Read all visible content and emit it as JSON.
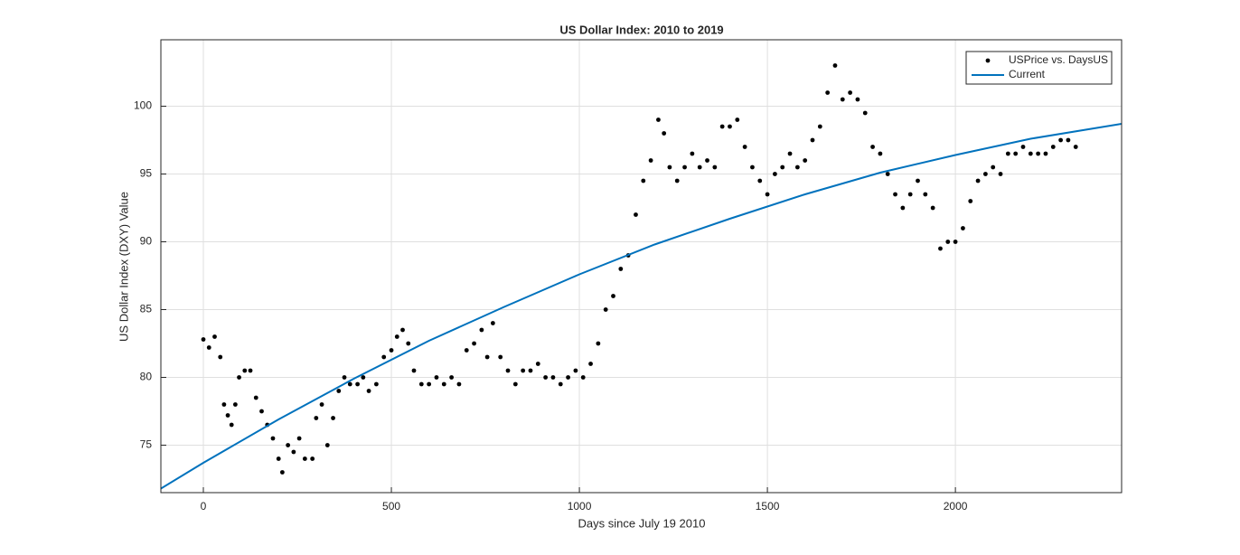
{
  "chart_data": {
    "type": "scatter",
    "title": "US Dollar Index: 2010 to 2019",
    "xlabel": "Days since July 19 2010",
    "ylabel": "US Dollar Index (DXY) Value",
    "xlim": [
      -113,
      2442
    ],
    "ylim": [
      71.5,
      104.9
    ],
    "xticks": [
      0,
      500,
      1000,
      1500,
      2000
    ],
    "yticks": [
      75,
      80,
      85,
      90,
      95,
      100
    ],
    "grid": true,
    "legend": "upper right",
    "series": [
      {
        "name": "USPrice vs. DaysUS",
        "type": "scatter",
        "color": "#000000",
        "x": [
          0,
          15,
          30,
          45,
          55,
          65,
          75,
          85,
          95,
          110,
          125,
          140,
          155,
          170,
          185,
          200,
          210,
          225,
          240,
          255,
          270,
          290,
          300,
          315,
          330,
          345,
          360,
          375,
          390,
          410,
          425,
          440,
          460,
          480,
          500,
          515,
          530,
          545,
          560,
          580,
          600,
          620,
          640,
          660,
          680,
          700,
          720,
          740,
          755,
          770,
          790,
          810,
          830,
          850,
          870,
          890,
          910,
          930,
          950,
          970,
          990,
          1010,
          1030,
          1050,
          1070,
          1090,
          1110,
          1130,
          1150,
          1170,
          1190,
          1210,
          1225,
          1240,
          1260,
          1280,
          1300,
          1320,
          1340,
          1360,
          1380,
          1400,
          1420,
          1440,
          1460,
          1480,
          1500,
          1520,
          1540,
          1560,
          1580,
          1600,
          1620,
          1640,
          1660,
          1680,
          1700,
          1720,
          1740,
          1760,
          1780,
          1800,
          1820,
          1840,
          1860,
          1880,
          1900,
          1920,
          1940,
          1960,
          1980,
          2000,
          2020,
          2040,
          2060,
          2080,
          2100,
          2120,
          2140,
          2160,
          2180,
          2200,
          2220,
          2240,
          2260,
          2280,
          2300,
          2320
        ],
        "values": [
          82.8,
          82.2,
          83,
          81.5,
          78,
          77.2,
          76.5,
          78,
          80,
          80.5,
          80.5,
          78.5,
          77.5,
          76.5,
          75.5,
          74,
          73,
          75,
          74.5,
          75.5,
          74,
          74,
          77,
          78,
          75,
          77,
          79,
          80,
          79.5,
          79.5,
          80,
          79,
          79.5,
          81.5,
          82,
          83,
          83.5,
          82.5,
          80.5,
          79.5,
          79.5,
          80,
          79.5,
          80,
          79.5,
          82,
          82.5,
          83.5,
          81.5,
          84,
          81.5,
          80.5,
          79.5,
          80.5,
          80.5,
          81,
          80,
          80,
          79.5,
          80,
          80.5,
          80,
          81,
          82.5,
          85,
          86,
          88,
          89,
          92,
          94.5,
          96,
          99,
          98,
          95.5,
          94.5,
          95.5,
          96.5,
          95.5,
          96,
          95.5,
          98.5,
          98.5,
          99,
          97,
          95.5,
          94.5,
          93.5,
          95,
          95.5,
          96.5,
          95.5,
          96,
          97.5,
          98.5,
          101,
          103,
          100.5,
          101,
          100.5,
          99.5,
          97,
          96.5,
          95,
          93.5,
          92.5,
          93.5,
          94.5,
          93.5,
          92.5,
          89.5,
          90,
          90,
          91,
          93,
          94.5,
          95,
          95.5,
          95,
          96.5,
          96.5,
          97,
          96.5,
          96.5,
          96.5,
          97,
          97.5,
          97.5,
          97
        ]
      },
      {
        "name": "Current",
        "type": "line",
        "color": "#0072bd",
        "x": [
          -113,
          0,
          200,
          400,
          600,
          800,
          1000,
          1200,
          1400,
          1600,
          1800,
          2000,
          2200,
          2442
        ],
        "values": [
          71.8,
          73.7,
          76.9,
          79.9,
          82.7,
          85.2,
          87.6,
          89.8,
          91.7,
          93.5,
          95.1,
          96.4,
          97.6,
          98.7
        ]
      }
    ]
  }
}
